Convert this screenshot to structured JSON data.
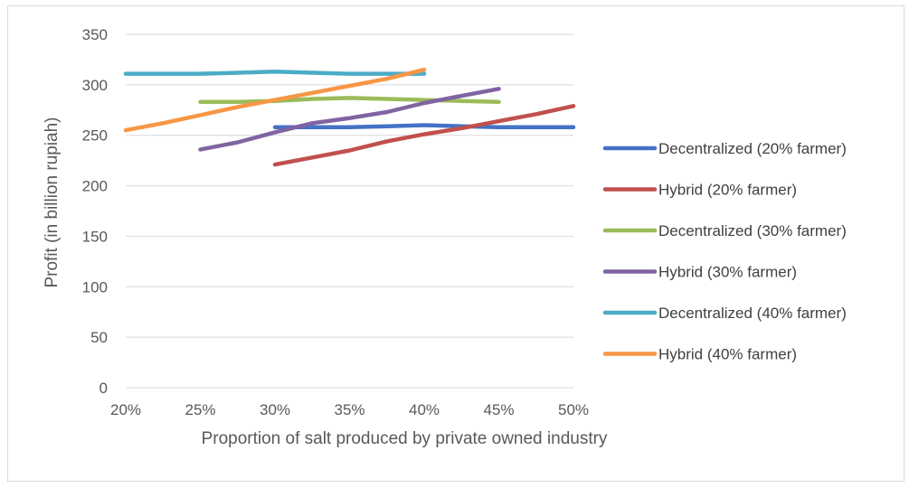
{
  "chart_data": {
    "type": "line",
    "title": "",
    "xlabel": "Proportion of salt produced by private owned industry",
    "ylabel": "Profit (in billion rupiah)",
    "categories": [
      "20%",
      "25%",
      "30%",
      "35%",
      "40%",
      "45%",
      "50%"
    ],
    "x": [
      20,
      22.5,
      25,
      27.5,
      30,
      32.5,
      35,
      37.5,
      40,
      42.5,
      45,
      47.5,
      50
    ],
    "ylim": [
      0,
      350
    ],
    "yticks": [
      0,
      50,
      100,
      150,
      200,
      250,
      300,
      350
    ],
    "grid": true,
    "legend_position": "right",
    "series": [
      {
        "name": "Decentralized (20% farmer)",
        "color": "#4472C4",
        "values": [
          null,
          null,
          null,
          null,
          258,
          258,
          258,
          259,
          260,
          259,
          258,
          258,
          258
        ]
      },
      {
        "name": "Hybrid (20% farmer)",
        "color": "#C0504D",
        "values": [
          null,
          null,
          null,
          null,
          221,
          228,
          235,
          244,
          251,
          257,
          264,
          271,
          279
        ]
      },
      {
        "name": "Decentralized (30% farmer)",
        "color": "#9BBB59",
        "values": [
          null,
          null,
          283,
          283,
          284,
          286,
          287,
          286,
          285,
          284,
          283,
          null,
          null
        ]
      },
      {
        "name": "Hybrid (30% farmer)",
        "color": "#8064A2",
        "values": [
          null,
          null,
          236,
          243,
          253,
          262,
          267,
          273,
          282,
          289,
          296,
          null,
          null
        ]
      },
      {
        "name": "Decentralized (40% farmer)",
        "color": "#4BACC6",
        "values": [
          311,
          311,
          311,
          312,
          313,
          312,
          311,
          311,
          311,
          null,
          null,
          null,
          null
        ]
      },
      {
        "name": "Hybrid (40% farmer)",
        "color": "#F79646",
        "values": [
          255,
          262,
          270,
          278,
          285,
          292,
          299,
          306,
          315,
          null,
          null,
          null,
          null
        ]
      }
    ]
  }
}
